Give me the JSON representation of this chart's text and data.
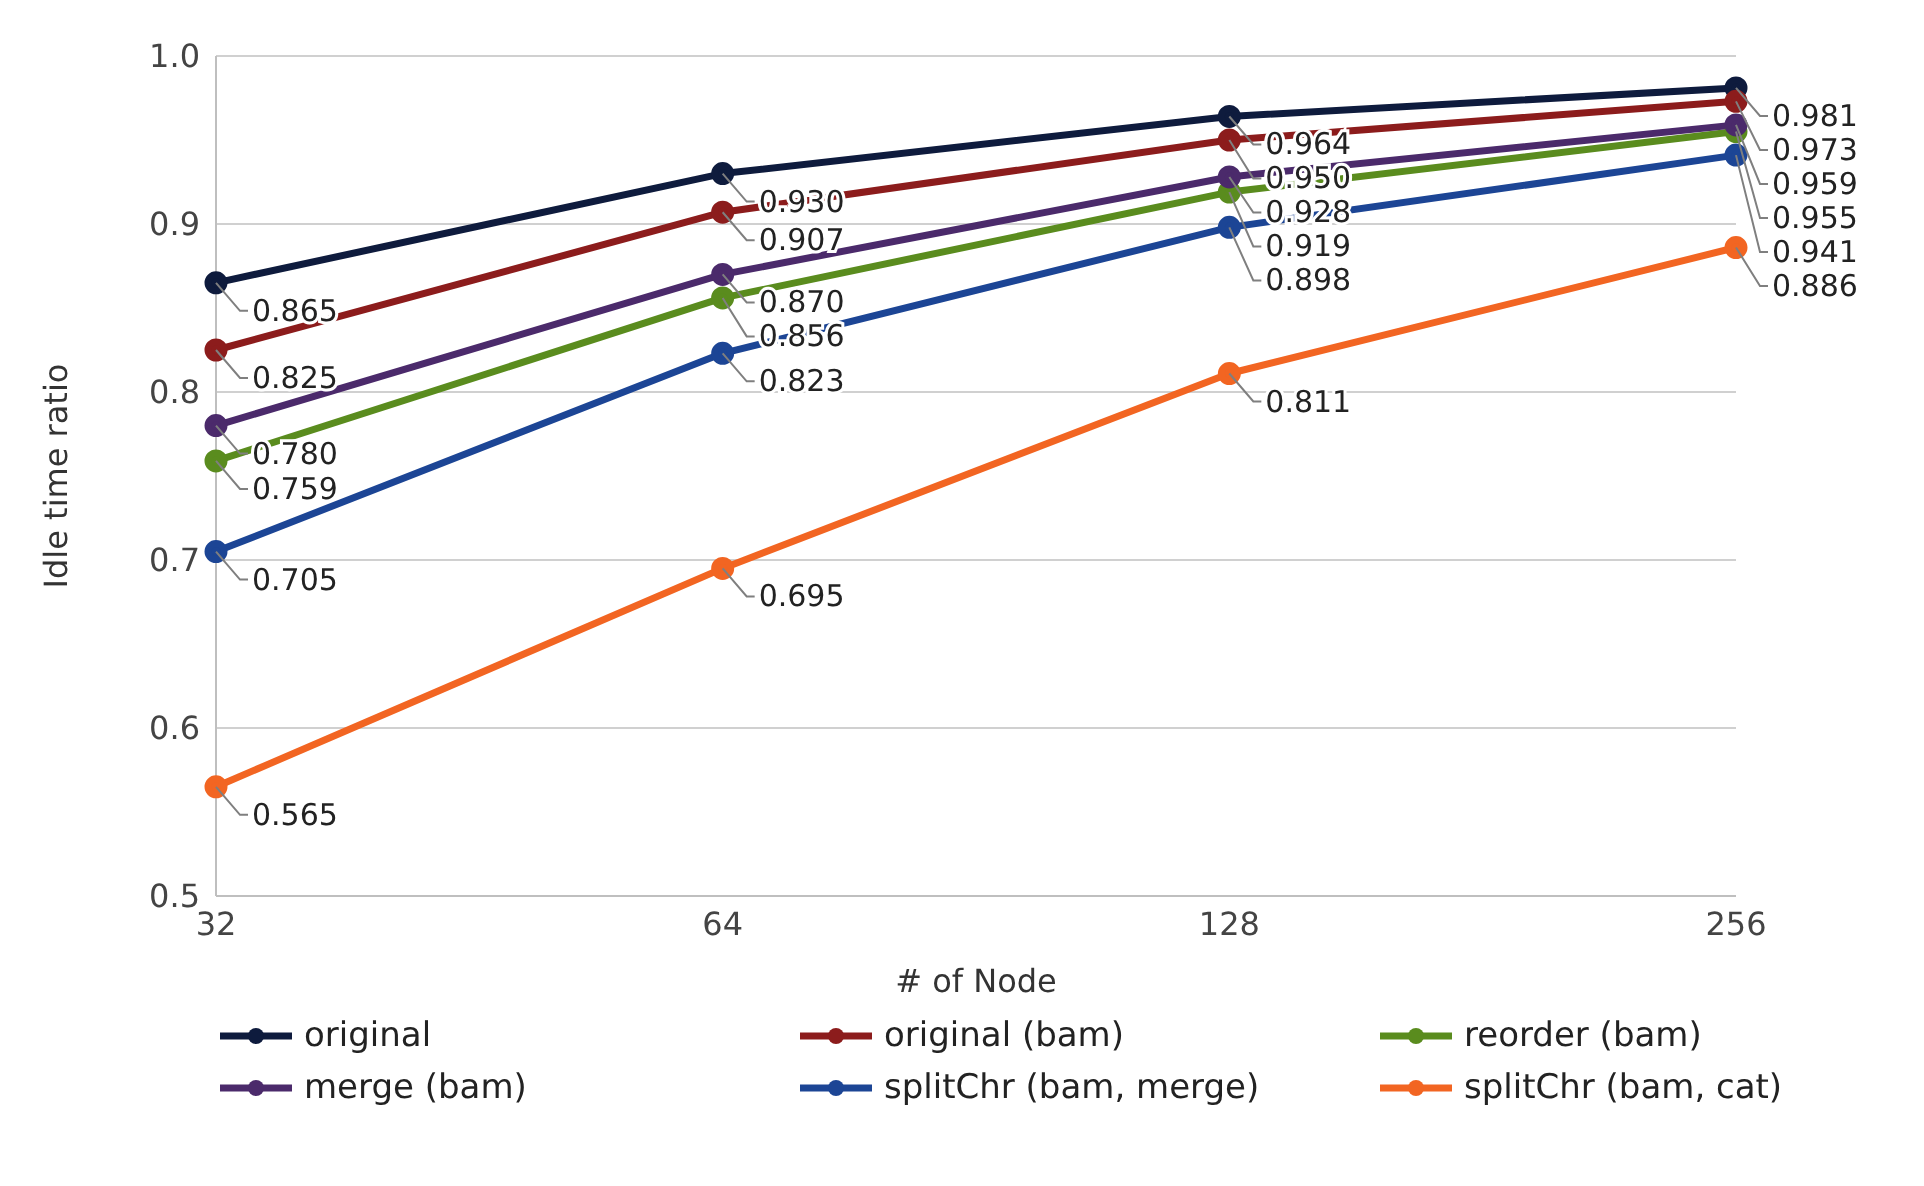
{
  "chart_data": {
    "type": "line",
    "xlabel": "# of Node",
    "ylabel": "Idle time ratio",
    "categories": [
      "32",
      "64",
      "128",
      "256"
    ],
    "ylim": [
      0.5,
      1.0
    ],
    "yticks": [
      0.5,
      0.6,
      0.7,
      0.8,
      0.9,
      {
        "value": 1.0,
        "label": "1.0"
      }
    ],
    "grid": "y",
    "legend": "bottom",
    "marker": "circle",
    "series": [
      {
        "name": "original",
        "color": "#0e1b3d",
        "values": [
          0.865,
          0.93,
          0.964,
          0.981
        ],
        "value_labels": [
          "0.865",
          "0.930",
          "0.964",
          "0.981"
        ]
      },
      {
        "name": "original (bam)",
        "color": "#8c1c1c",
        "values": [
          0.825,
          0.907,
          0.95,
          0.973
        ],
        "value_labels": [
          "0.825",
          "0.907",
          "0.950",
          "0.973"
        ]
      },
      {
        "name": "reorder (bam)",
        "color": "#5a8c1e",
        "values": [
          0.759,
          0.856,
          0.919,
          0.955
        ],
        "value_labels": [
          "0.759",
          "0.856",
          "0.919",
          "0.955"
        ]
      },
      {
        "name": "merge (bam)",
        "color": "#4b2a6b",
        "values": [
          0.78,
          0.87,
          0.928,
          0.959
        ],
        "value_labels": [
          "0.780",
          "0.870",
          "0.928",
          "0.959"
        ]
      },
      {
        "name": "splitChr (bam, merge)",
        "color": "#1c4595",
        "values": [
          0.705,
          0.823,
          0.898,
          0.941
        ],
        "value_labels": [
          "0.705",
          "0.823",
          "0.898",
          "0.941"
        ]
      },
      {
        "name": "splitChr (bam, cat)",
        "color": "#f26522",
        "values": [
          0.565,
          0.695,
          0.811,
          0.886
        ],
        "value_labels": [
          "0.565",
          "0.695",
          "0.811",
          "0.886"
        ]
      }
    ]
  }
}
